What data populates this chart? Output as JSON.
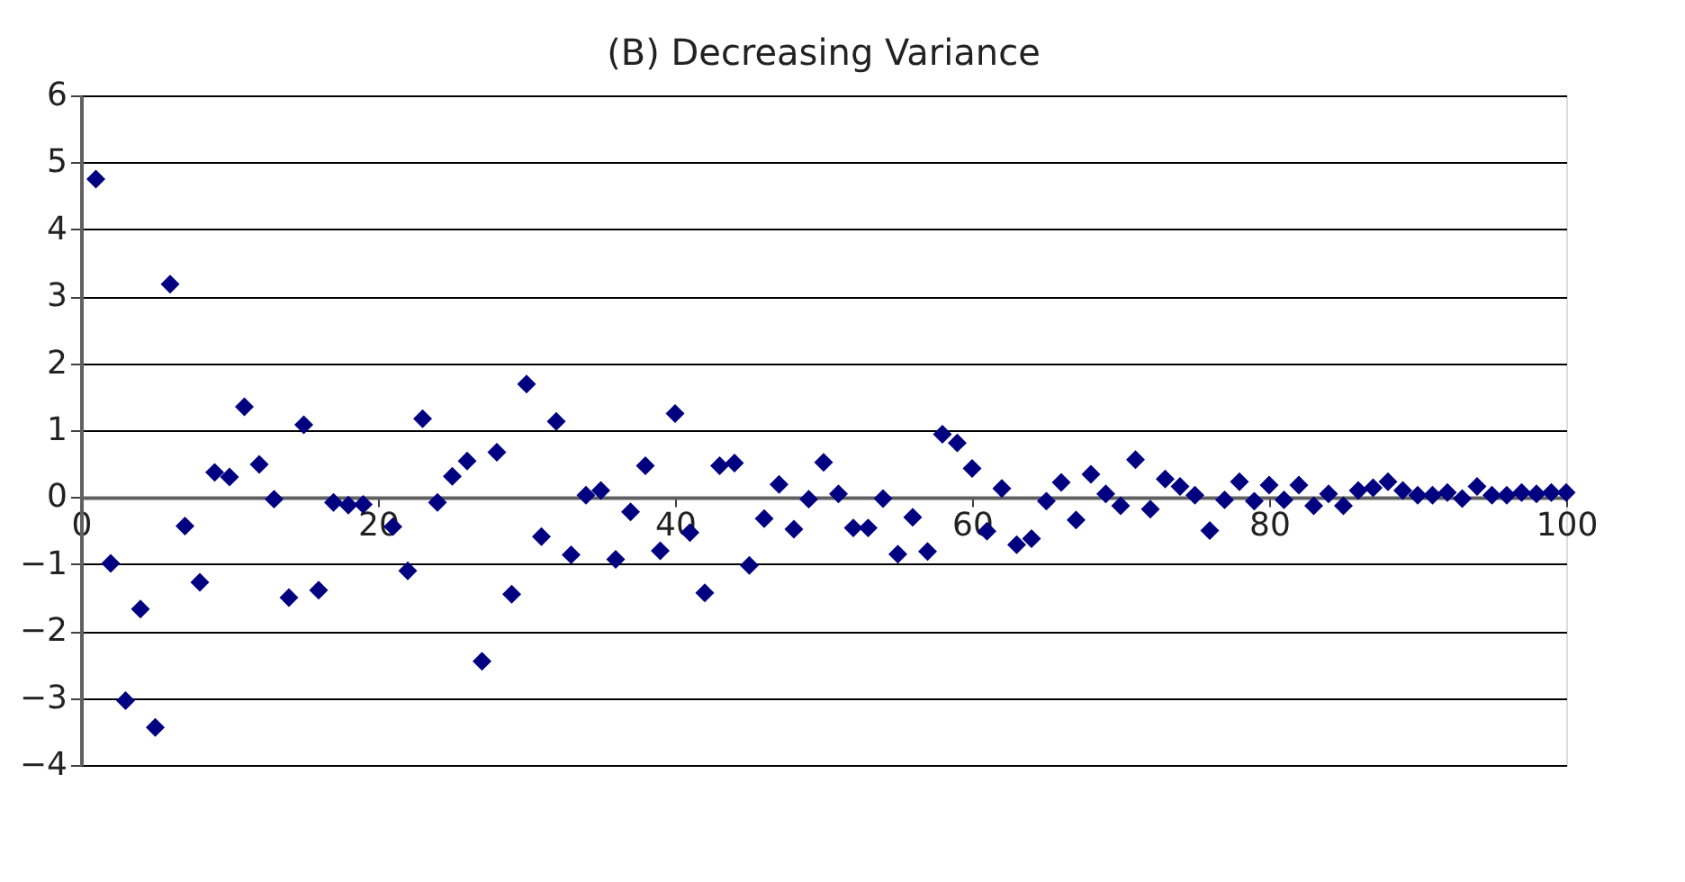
{
  "chart_data": {
    "type": "scatter",
    "title": "(B) Decreasing Variance",
    "x": [
      1,
      2,
      3,
      4,
      5,
      6,
      7,
      8,
      9,
      10,
      11,
      12,
      13,
      14,
      15,
      16,
      17,
      18,
      19,
      20,
      21,
      22,
      23,
      24,
      25,
      26,
      27,
      28,
      29,
      30,
      31,
      32,
      33,
      34,
      35,
      36,
      37,
      38,
      39,
      40,
      41,
      42,
      43,
      44,
      45,
      46,
      47,
      48,
      49,
      50,
      51,
      52,
      53,
      54,
      55,
      56,
      57,
      58,
      59,
      60,
      61,
      62,
      63,
      64,
      65,
      66,
      67,
      68,
      69,
      70,
      71,
      72,
      73,
      74,
      75,
      76,
      77,
      78,
      79,
      80,
      81,
      82,
      83,
      84,
      85,
      86,
      87,
      88,
      89,
      90,
      91,
      92,
      93,
      94,
      95,
      96,
      97,
      98,
      99,
      100
    ],
    "series": [
      {
        "color": "#000080",
        "values": [
          4.75,
          -0.99,
          -3.04,
          -1.67,
          -3.44,
          3.18,
          -0.43,
          -1.27,
          0.37,
          0.3,
          1.35,
          0.49,
          -0.03,
          -1.5,
          1.08,
          -1.39,
          -0.08,
          -0.12,
          -0.11,
          null,
          -0.44,
          -1.1,
          1.17,
          -0.08,
          0.31,
          0.54,
          -2.45,
          0.67,
          -1.45,
          1.69,
          -0.59,
          1.13,
          -0.86,
          0.03,
          0.1,
          -0.93,
          -0.22,
          0.47,
          -0.8,
          1.25,
          -0.53,
          -1.43,
          0.47,
          0.51,
          -1.02,
          -0.32,
          0.19,
          -0.48,
          -0.03,
          0.52,
          0.05,
          -0.46,
          -0.46,
          -0.02,
          -0.85,
          -0.3,
          -0.81,
          0.94,
          0.81,
          0.43,
          -0.51,
          0.13,
          -0.71,
          -0.62,
          -0.06,
          0.22,
          -0.34,
          0.34,
          0.05,
          -0.13,
          0.56,
          -0.18,
          0.27,
          0.16,
          0.03,
          -0.5,
          -0.04,
          0.23,
          -0.06,
          0.18,
          -0.04,
          0.18,
          -0.13,
          0.05,
          -0.13,
          0.1,
          0.14,
          0.23,
          0.1,
          0.03,
          0.03,
          0.07,
          -0.02,
          0.16,
          0.03,
          0.03,
          0.07,
          0.05,
          0.07,
          0.07
        ]
      }
    ],
    "xlim": [
      0,
      100
    ],
    "xticks": [
      0,
      20,
      40,
      60,
      80,
      100
    ],
    "ylim": [
      -4,
      6
    ],
    "yticks": [
      {
        "value": -4,
        "label": "−4"
      },
      {
        "value": -3,
        "label": "−3"
      },
      {
        "value": -2,
        "label": "−2"
      },
      {
        "value": -1,
        "label": "−1"
      },
      0,
      1,
      2,
      3,
      4,
      5,
      6
    ],
    "grid": "y",
    "legend": false,
    "marker": "diamond"
  }
}
